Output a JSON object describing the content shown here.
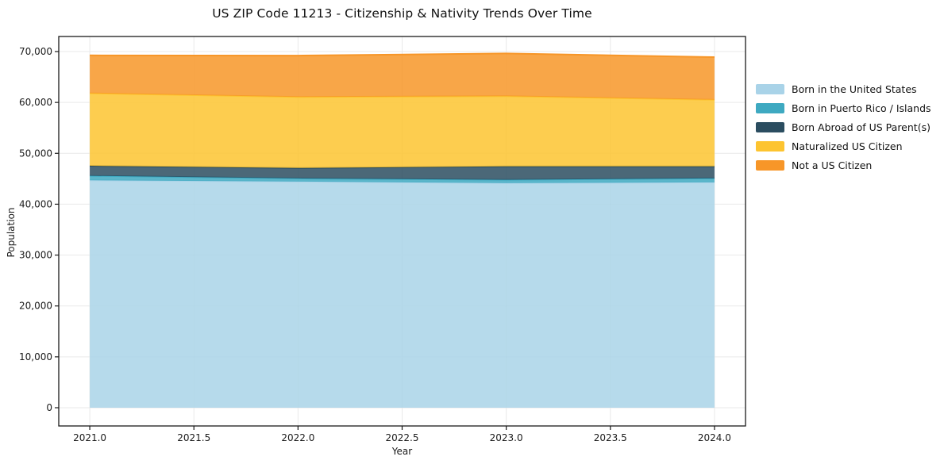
{
  "title": "US ZIP Code 11213 - Citizenship & Nativity Trends Over Time",
  "chart_data": {
    "type": "area",
    "stacked": true,
    "title": "US ZIP Code 11213 - Citizenship & Nativity Trends Over Time",
    "xlabel": "Year",
    "ylabel": "Population",
    "x": [
      2021,
      2022,
      2023,
      2024
    ],
    "series": [
      {
        "name": "Born in the United States",
        "color": "#a9d3e8",
        "values": [
          44700,
          44450,
          44150,
          44300
        ]
      },
      {
        "name": "Born in Puerto Rico / Islands",
        "color": "#3ea9c1",
        "values": [
          880,
          620,
          650,
          780
        ]
      },
      {
        "name": "Born Abroad of US Parent(s)",
        "color": "#2b4d60",
        "values": [
          1960,
          2050,
          2630,
          2350
        ]
      },
      {
        "name": "Naturalized US Citizen",
        "color": "#fdc430",
        "values": [
          14250,
          13950,
          13800,
          13100
        ]
      },
      {
        "name": "Not a US Citizen",
        "color": "#f79628",
        "values": [
          7460,
          8130,
          8400,
          8370
        ]
      }
    ],
    "stacked_totals": [
      69250,
      69200,
      69630,
      68900
    ],
    "x_ticks": [
      2021.0,
      2021.5,
      2022.0,
      2022.5,
      2023.0,
      2023.5,
      2024.0
    ],
    "x_tick_labels": [
      "2021.0",
      "2021.5",
      "2022.0",
      "2022.5",
      "2023.0",
      "2023.5",
      "2024.0"
    ],
    "y_ticks": [
      0,
      10000,
      20000,
      30000,
      40000,
      50000,
      60000,
      70000
    ],
    "y_tick_labels": [
      "0",
      "10,000",
      "20,000",
      "30,000",
      "40,000",
      "50,000",
      "60,000",
      "70,000"
    ],
    "xlim": [
      2020.851,
      2024.149
    ],
    "ylim": [
      -3585,
      72960
    ],
    "grid": true,
    "grid_color": "#e9e9e9",
    "axis_color": "#1a1a1a",
    "legend_position": "center-right-outside",
    "fill_opacity": 0.85
  }
}
